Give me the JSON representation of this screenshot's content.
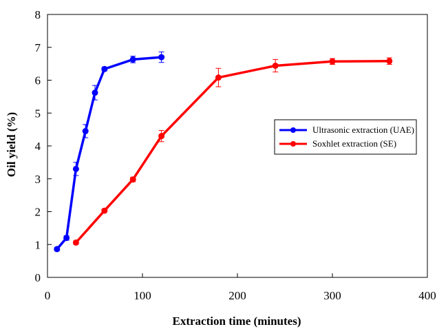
{
  "chart_data": {
    "type": "line",
    "xlabel": "Extraction time (minutes)",
    "ylabel": "Oil yield (%)",
    "xlim": [
      0,
      400
    ],
    "ylim": [
      0,
      8
    ],
    "xticks": [
      0,
      100,
      200,
      300,
      400
    ],
    "yticks": [
      0,
      1,
      2,
      3,
      4,
      5,
      6,
      7,
      8
    ],
    "grid": false,
    "legend_position": "right",
    "series": [
      {
        "name": "Ultrasonic extraction (UAE)",
        "color": "#0000ff",
        "points": [
          {
            "x": 10,
            "y": 0.86,
            "err": 0.05
          },
          {
            "x": 20,
            "y": 1.2,
            "err": 0.07
          },
          {
            "x": 30,
            "y": 3.3,
            "err": 0.2
          },
          {
            "x": 40,
            "y": 4.45,
            "err": 0.2
          },
          {
            "x": 50,
            "y": 5.62,
            "err": 0.22
          },
          {
            "x": 60,
            "y": 6.34,
            "err": 0.06
          },
          {
            "x": 90,
            "y": 6.63,
            "err": 0.1
          },
          {
            "x": 120,
            "y": 6.7,
            "err": 0.16
          }
        ]
      },
      {
        "name": "Soxhlet extraction (SE)",
        "color": "#ff0000",
        "points": [
          {
            "x": 30,
            "y": 1.06,
            "err": 0.05
          },
          {
            "x": 60,
            "y": 2.03,
            "err": 0.05
          },
          {
            "x": 90,
            "y": 2.98,
            "err": 0.07
          },
          {
            "x": 120,
            "y": 4.3,
            "err": 0.17
          },
          {
            "x": 180,
            "y": 6.08,
            "err": 0.28
          },
          {
            "x": 240,
            "y": 6.44,
            "err": 0.19
          },
          {
            "x": 300,
            "y": 6.57,
            "err": 0.09
          },
          {
            "x": 360,
            "y": 6.58,
            "err": 0.1
          }
        ]
      }
    ]
  }
}
